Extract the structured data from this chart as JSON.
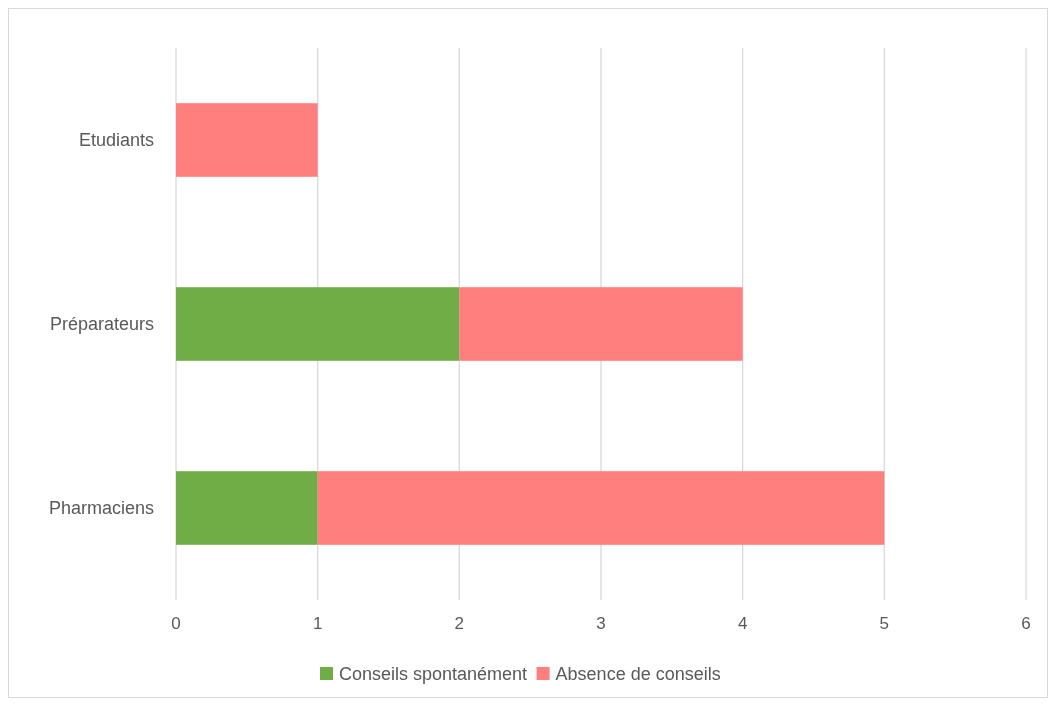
{
  "chart_data": {
    "type": "bar",
    "orientation": "horizontal",
    "stacked": true,
    "categories": [
      "Etudiants",
      "Préparateurs",
      "Pharmaciens"
    ],
    "series": [
      {
        "name": "Conseils spontanément",
        "color": "#70ad47",
        "values": [
          0,
          2,
          1
        ]
      },
      {
        "name": "Absence de conseils",
        "color": "#ff7f7f",
        "values": [
          1,
          2,
          4
        ]
      }
    ],
    "xlim": [
      0,
      6
    ],
    "xticks": [
      0,
      1,
      2,
      3,
      4,
      5,
      6
    ],
    "grid": "x",
    "legend": "bottom"
  }
}
